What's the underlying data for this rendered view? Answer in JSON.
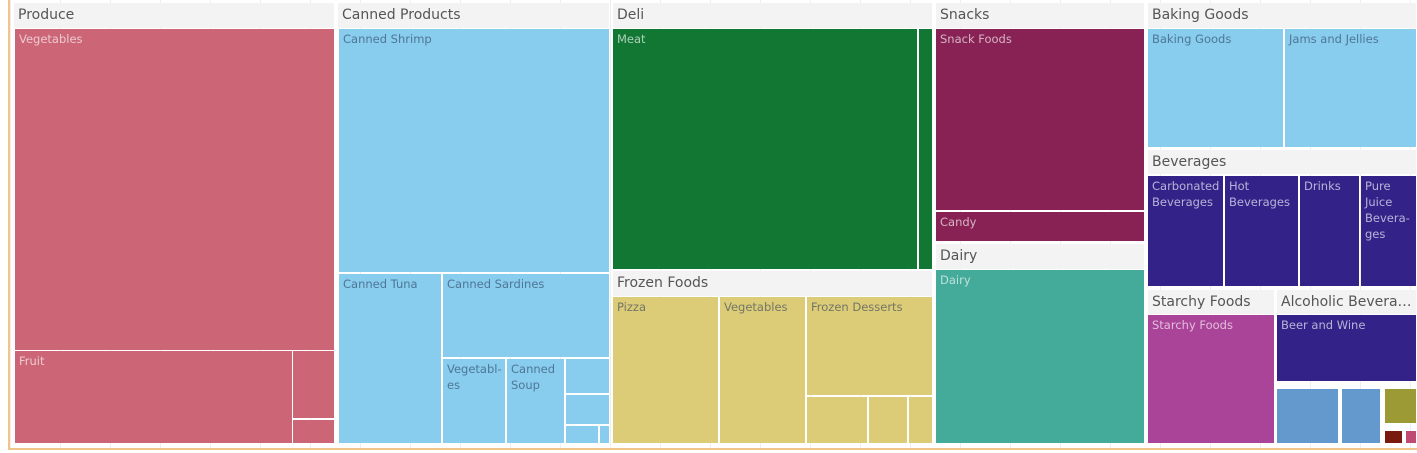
{
  "chart_data": {
    "type": "treemap",
    "groups": [
      {
        "name": "Produce",
        "color": "#cc6677",
        "children": [
          "Vegetables",
          "Fruit",
          "",
          ""
        ]
      },
      {
        "name": "Canned Products",
        "color": "#88ccee",
        "children": [
          "Canned Shrimp",
          "Canned Tuna",
          "Canned Sardines",
          "Vegetabl-es",
          "Canned Soup",
          "",
          "",
          "",
          ""
        ]
      },
      {
        "name": "Deli",
        "color": "#117733",
        "children": [
          "Meat",
          ""
        ]
      },
      {
        "name": "Frozen Foods",
        "color": "#ddcc77",
        "children": [
          "Pizza",
          "Vegetables",
          "Frozen Desserts",
          "",
          "",
          ""
        ]
      },
      {
        "name": "Snacks",
        "color": "#882255",
        "children": [
          "Snack Foods",
          "Candy"
        ]
      },
      {
        "name": "Dairy",
        "color": "#44aa99",
        "children": [
          "Dairy"
        ]
      },
      {
        "name": "Baking Goods",
        "color": "#88ccee",
        "children": [
          "Baking Goods",
          "Jams and Jellies"
        ]
      },
      {
        "name": "Beverages",
        "color": "#332288",
        "children": [
          "Carbonated Beverages",
          "Hot Beverages",
          "Drinks",
          "Pure Juice Bevera-ges"
        ]
      },
      {
        "name": "Starchy Foods",
        "color": "#aa4499",
        "children": [
          "Starchy Foods"
        ]
      },
      {
        "name": "Alcoholic Beverag...",
        "color": "#332288",
        "children": [
          "Beer and Wine",
          "",
          "",
          "",
          "",
          ""
        ]
      }
    ],
    "extra_colors": [
      "#6399cc",
      "#6399cc",
      "#9c9a34",
      "#7a1a0e",
      "#c14a72"
    ]
  }
}
